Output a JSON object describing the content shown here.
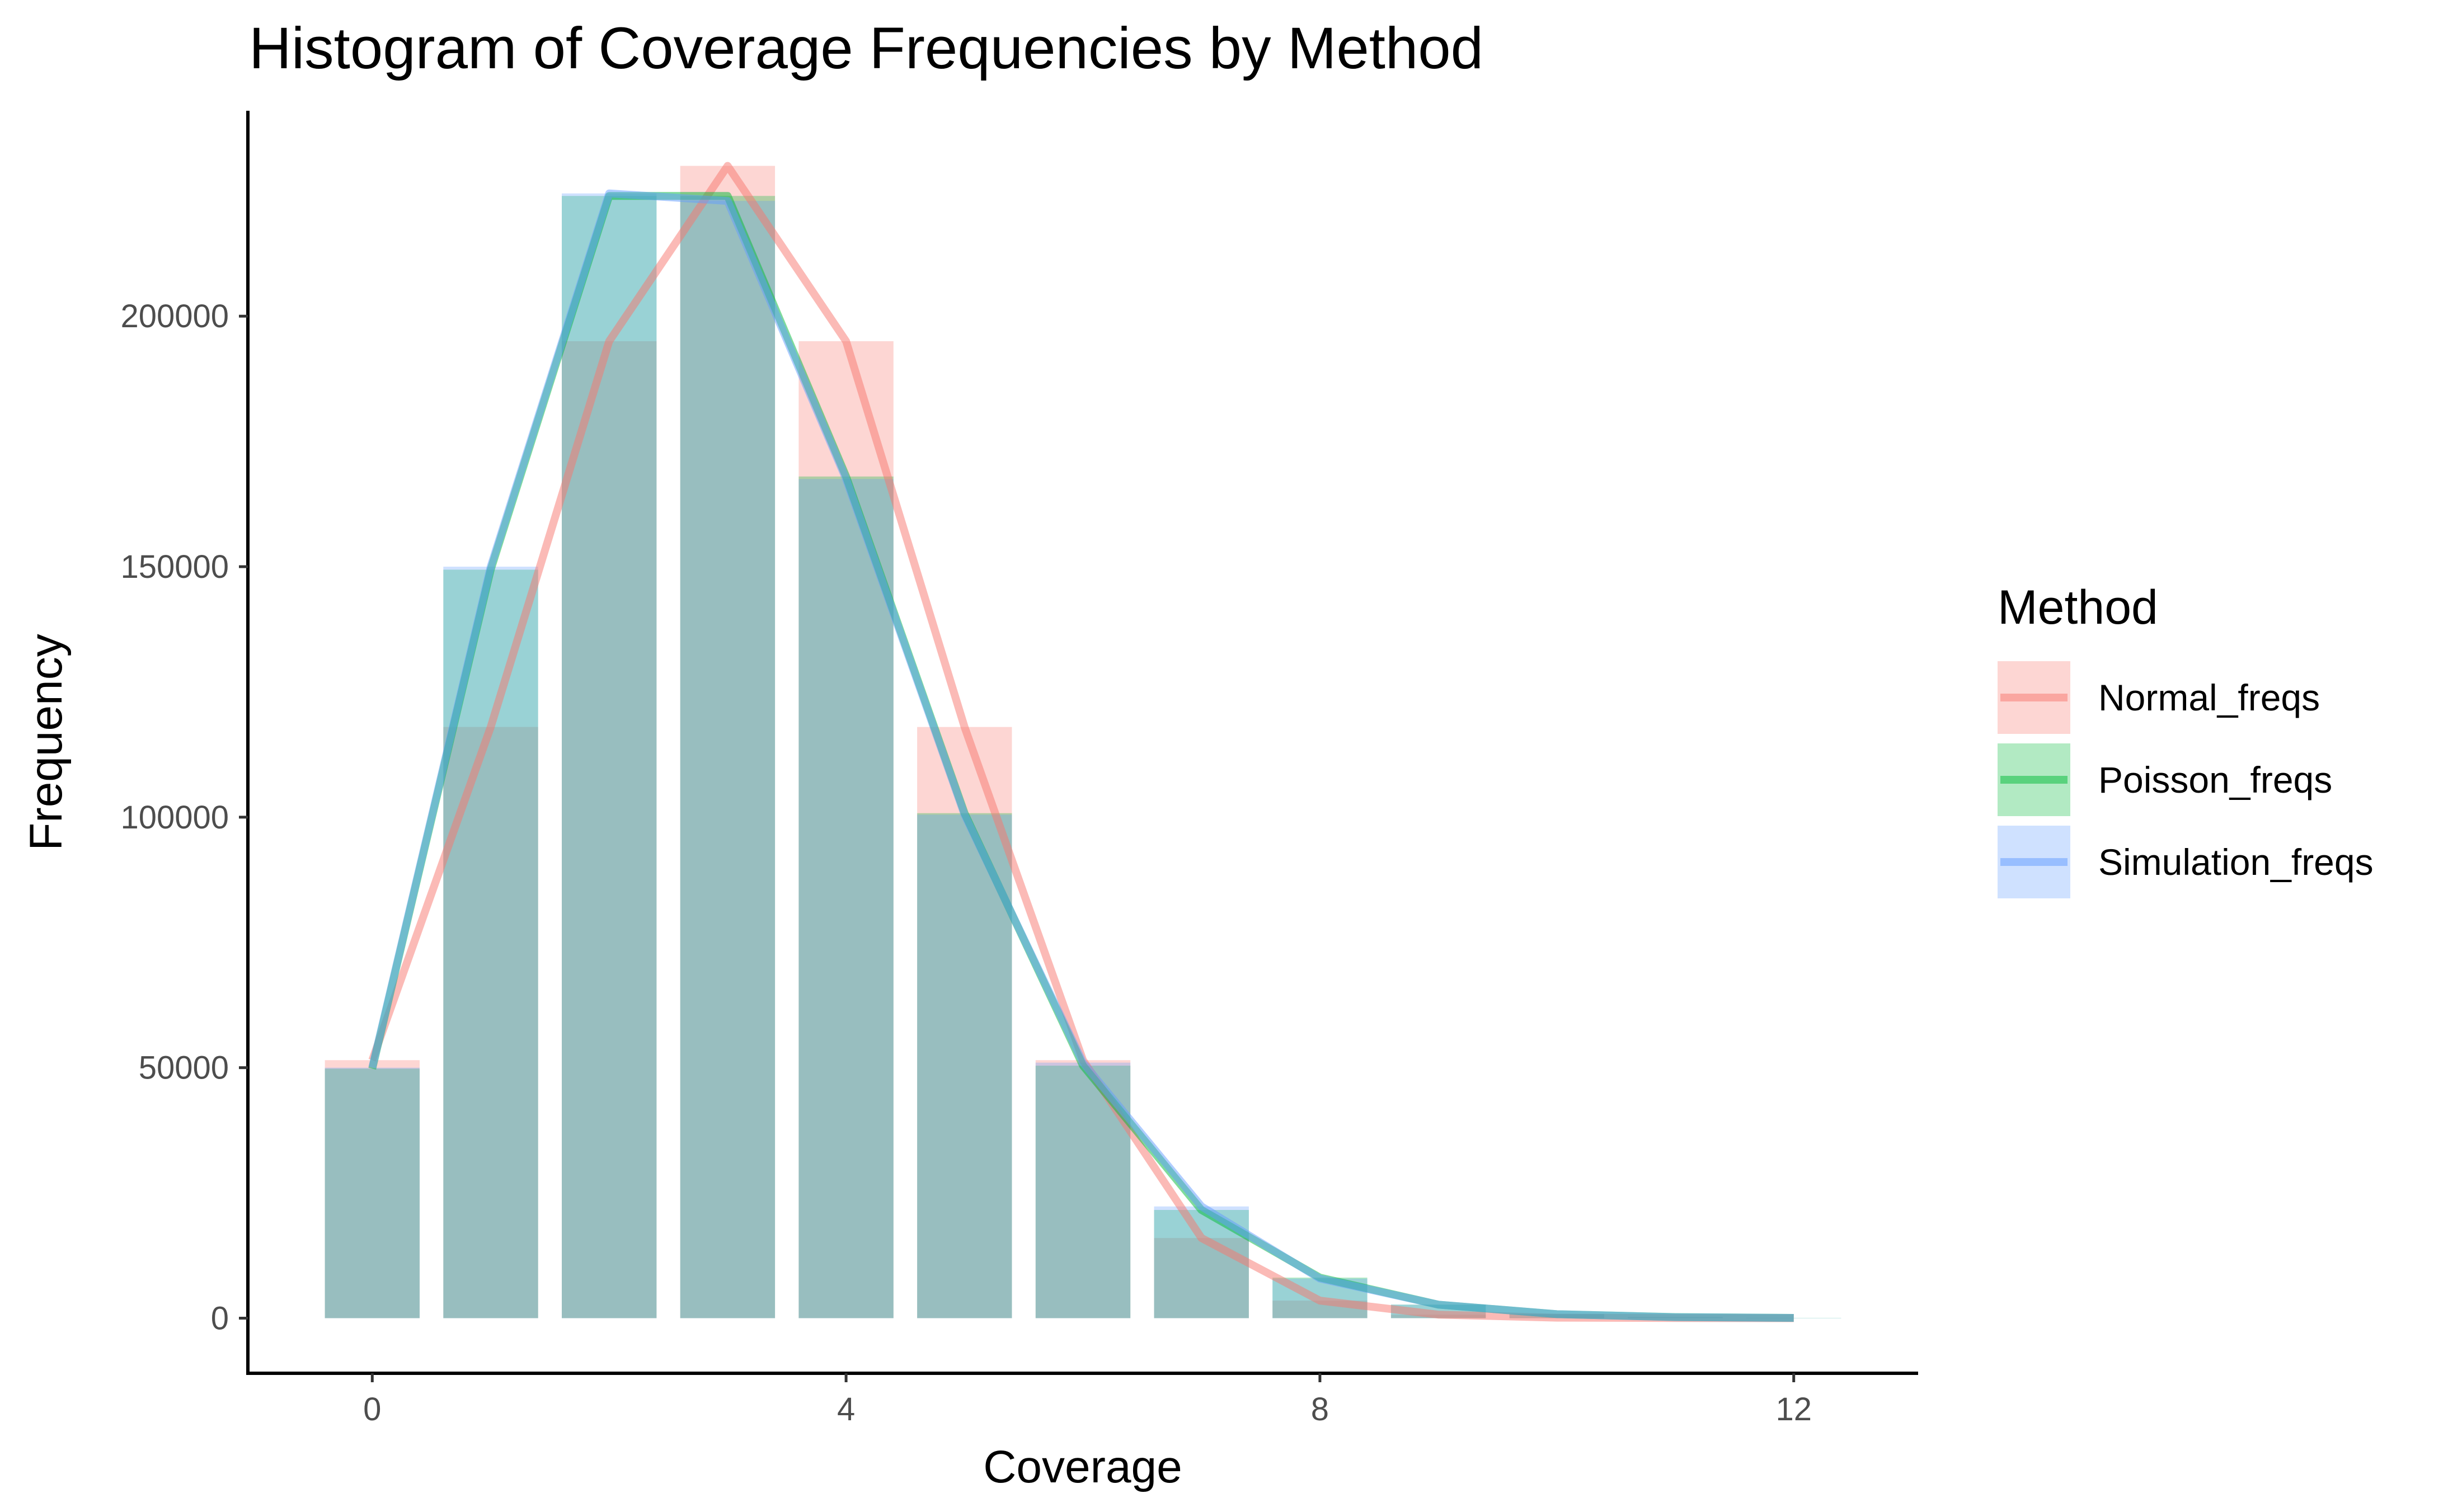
{
  "chart_data": {
    "type": "bar",
    "title": "Histogram of Coverage Frequencies by Method",
    "xlabel": "Coverage",
    "ylabel": "Frequency",
    "x": [
      0,
      1,
      2,
      3,
      4,
      5,
      6,
      7,
      8,
      9,
      10,
      11,
      12
    ],
    "xlim": [
      -1.05,
      13.05
    ],
    "ylim": [
      -11000,
      241000
    ],
    "xticks": [
      0,
      4,
      8,
      12
    ],
    "xtick_labels": [
      "0",
      "4",
      "8",
      "12"
    ],
    "yticks": [
      0,
      50000,
      100000,
      150000,
      200000
    ],
    "ytick_labels": [
      "0",
      "50000",
      "100000",
      "150000",
      "200000"
    ],
    "grid": false,
    "legend": {
      "title": "Method",
      "position": "right",
      "entries": [
        "Normal_freqs",
        "Poisson_freqs",
        "Simulation_freqs"
      ]
    },
    "series": [
      {
        "name": "Normal_freqs",
        "color": "#f8766d",
        "values": [
          51500,
          118000,
          195000,
          230000,
          195000,
          118000,
          51500,
          16000,
          3500,
          700,
          100,
          20,
          0
        ]
      },
      {
        "name": "Poisson_freqs",
        "color": "#00ba38",
        "values": [
          49800,
          149400,
          224000,
          224000,
          168000,
          100800,
          50400,
          21600,
          8100,
          2700,
          800,
          220,
          60
        ]
      },
      {
        "name": "Simulation_freqs",
        "color": "#619cff",
        "values": [
          50000,
          150000,
          224500,
          223000,
          167500,
          100500,
          51000,
          22300,
          7900,
          2700,
          800,
          200,
          50
        ]
      }
    ]
  }
}
